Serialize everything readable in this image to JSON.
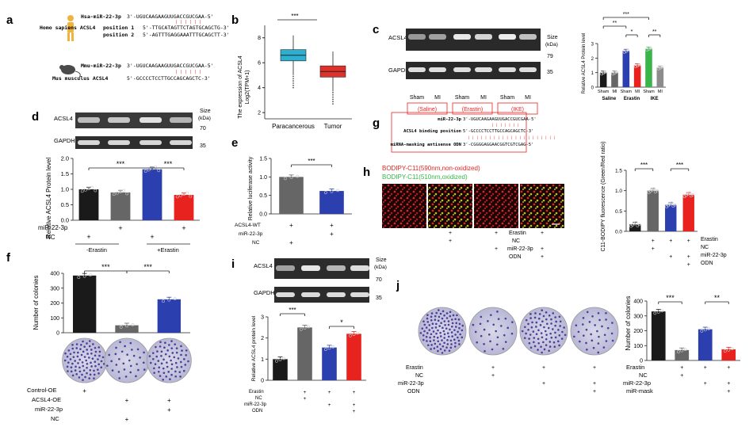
{
  "panels": {
    "a": {
      "letter": "a",
      "hsa_label": "Hsa-miR-22-3p",
      "hsa_seq": "3'-UGUCAAGAAGUUGACCGUCGAA-5'",
      "homo_label": "Homo sapiens ACSL4",
      "pos1_label": "position 1",
      "pos1_seq": "5'-TTGCATAGTTCTAGTGCAGCTG-3'",
      "pos2_label": "position 2",
      "pos2_seq": "5'-AGTTTGAGGAAATTTGCAGCTT-3'",
      "mmu_label": "Mmu-miR-22-3p",
      "mmu_seq": "3'-UGUCAAGAAGUUGACCGUCGAA-5'",
      "mus_label": "Mus musculus ACSL4",
      "mus_seq": "5'-GCCCCTCCTTGCCAGCAGCTC-3'",
      "pairs": "| | | | | |"
    },
    "b": {
      "letter": "b",
      "significance": "***",
      "ylabel": "The expression of ACSL4",
      "ylabel2": "Log2(TPM+1)",
      "categories": [
        "Paracancerous",
        "Tumor"
      ],
      "yticks": [
        "2",
        "4",
        "6",
        "8"
      ]
    },
    "c": {
      "letter": "c",
      "blot_labels": [
        "ACSL4",
        "GAPDH"
      ],
      "size_label": "Size",
      "size_unit": "(kDa)",
      "size_markers": [
        "79",
        "35"
      ],
      "lanes": [
        "Sham",
        "MI",
        "Sham",
        "MI",
        "Sham",
        "MI"
      ],
      "groups": [
        "(Saline)",
        "(Erastin)",
        "(IKE)"
      ]
    },
    "c_chart": {
      "ylabel": "Relative ACSL4 Protein level",
      "yticks": [
        "0",
        "1",
        "2",
        "3"
      ],
      "groups": [
        "Saline",
        "Erastin",
        "IKE"
      ],
      "lanes": [
        "Sham",
        "MI",
        "Sham",
        "MI",
        "Sham",
        "MI"
      ],
      "sig": [
        "***",
        "**",
        "*",
        "**"
      ]
    },
    "d": {
      "letter": "d",
      "blot_labels": [
        "ACSL4",
        "GAPDH"
      ],
      "size_label": "Size",
      "size_unit": "(kDa)",
      "size_markers": [
        "70",
        "35"
      ],
      "ylabel": "Relative ACSL4 Protein level",
      "yticks": [
        "0.0",
        "0.5",
        "1.0",
        "1.5",
        "2.0"
      ],
      "sig": [
        "***",
        "***"
      ],
      "row_labels": [
        "miR-22-3p",
        "NC"
      ],
      "bottom_labels": [
        "-Erastin",
        "+Erastin"
      ],
      "plus": "+"
    },
    "e": {
      "letter": "e",
      "significance": "***",
      "ylabel": "Relative luciferase activity",
      "yticks": [
        "0.0",
        "0.5",
        "1.0",
        "1.5"
      ],
      "row_labels": [
        "ACSL4-WT",
        "miR-22-3p",
        "NC"
      ],
      "plus": "+"
    },
    "f": {
      "letter": "f",
      "ylabel": "Number of colonies",
      "yticks": [
        "0",
        "100",
        "200",
        "300",
        "400"
      ],
      "sig": [
        "***",
        "***"
      ],
      "row_labels": [
        "Control-OE",
        "ACSL4-OE",
        "miR-22-3p",
        "NC"
      ],
      "plus": "+"
    },
    "g": {
      "letter": "g",
      "row1_label": "miR-22-3p",
      "row1_seq": "3'-UGUCAAGAAGUUGACCGUCGAA-5'",
      "row2_label": "ACSL4 binding position",
      "row2_seq": "5'-GCCCCTCCTTGCCAGCAGCTC-3'",
      "row3_label": "miRNA-masking antisense ODN",
      "row3_seq": "3'-CGGGGAGGAACGGTCGTCGAG-5'",
      "pairs": "| | | | | | |",
      "pairs_long": "| | | | | | | | | | | | | | | | | | | | |"
    },
    "h": {
      "letter": "h",
      "legend_red": "BODIPY-C11(590nm,non-oxidized)",
      "legend_green": "BODIPY-C11(510nm,oxidized)",
      "ylabel": "C11-BODIPY fluorescence (Green/Red ratio)",
      "yticks": [
        "0.0",
        "0.5",
        "1.0",
        "1.5"
      ],
      "sig": [
        "***",
        "***"
      ],
      "row_labels": [
        "Erastin",
        "NC",
        "miR-22-3p",
        "ODN"
      ],
      "plus": "+"
    },
    "i": {
      "letter": "i",
      "blot_labels": [
        "ACSL4",
        "GAPDH"
      ],
      "size_label": "Size",
      "size_unit": "(kDa)",
      "size_markers": [
        "70",
        "35"
      ],
      "ylabel": "Relative ACSL4 protein level",
      "yticks": [
        "0",
        "1",
        "2",
        "3"
      ],
      "sig": [
        "***",
        "*"
      ],
      "row_labels": [
        "Erastin",
        "NC",
        "miR-22-3p",
        "ODN"
      ],
      "plus": "+"
    },
    "j": {
      "letter": "j",
      "ylabel": "Number of colonies",
      "yticks": [
        "0",
        "100",
        "200",
        "300",
        "400"
      ],
      "sig": [
        "***",
        "**"
      ],
      "dish_row_labels": [
        "Erastin",
        "NC",
        "miR-22-3p",
        "ODN"
      ],
      "chart_row_labels": [
        "Erastin",
        "NC",
        "miR-22-3p",
        "miR-mask"
      ],
      "plus": "+"
    }
  },
  "colors": {
    "black": "#1a1a1a",
    "grey": "#666666",
    "blue": "#2b3fae",
    "red": "#e8231f",
    "green": "#3ab54a",
    "cyan": "#2bb0d2",
    "boxred": "#e0302a",
    "seqred": "#e8231f"
  },
  "chart_data": [
    {
      "panel": "b",
      "type": "box",
      "categories": [
        "Paracancerous",
        "Tumor"
      ],
      "series": [
        {
          "values": [
            6.6,
            5.3
          ]
        }
      ],
      "ylim": [
        1.5,
        9
      ]
    },
    {
      "panel": "c",
      "type": "bar",
      "categories": [
        "Saline Sham",
        "Saline MI",
        "Erastin Sham",
        "Erastin MI",
        "IKE Sham",
        "IKE MI"
      ],
      "values": [
        1.0,
        1.0,
        2.5,
        1.5,
        2.65,
        1.35
      ],
      "ylim": [
        0,
        3
      ]
    },
    {
      "panel": "d",
      "type": "bar",
      "categories": [
        "-Erastin miR-22-3p",
        "-Erastin NC",
        "+Erastin miR-22-3p",
        "+Erastin NC"
      ],
      "values": [
        1.0,
        0.9,
        1.65,
        0.82
      ],
      "ylim": [
        0,
        2
      ]
    },
    {
      "panel": "e",
      "type": "bar",
      "categories": [
        "NC",
        "miR-22-3p"
      ],
      "values": [
        1.0,
        0.62
      ],
      "ylim": [
        0,
        1.5
      ]
    },
    {
      "panel": "f",
      "type": "bar",
      "categories": [
        "Control-OE",
        "ACSL4-OE + NC",
        "ACSL4-OE + miR-22-3p"
      ],
      "values": [
        385,
        50,
        225
      ],
      "ylim": [
        0,
        400
      ]
    },
    {
      "panel": "h",
      "type": "bar",
      "categories": [
        "Control",
        "Erastin+NC",
        "Erastin+miR-22-3p",
        "Erastin+miR-22-3p+ODN"
      ],
      "values": [
        0.17,
        1.0,
        0.65,
        0.9
      ],
      "ylim": [
        0,
        1.5
      ]
    },
    {
      "panel": "i",
      "type": "bar",
      "categories": [
        "Control",
        "Erastin+NC",
        "Erastin+miR-22-3p",
        "Erastin+miR-22-3p+ODN"
      ],
      "values": [
        1.0,
        2.5,
        1.55,
        2.2
      ],
      "ylim": [
        0,
        3
      ]
    },
    {
      "panel": "j",
      "type": "bar",
      "categories": [
        "Control",
        "Erastin+NC",
        "Erastin+miR-22-3p",
        "Erastin+miR-22-3p+miR-mask"
      ],
      "values": [
        330,
        70,
        210,
        75
      ],
      "ylim": [
        0,
        400
      ]
    }
  ]
}
